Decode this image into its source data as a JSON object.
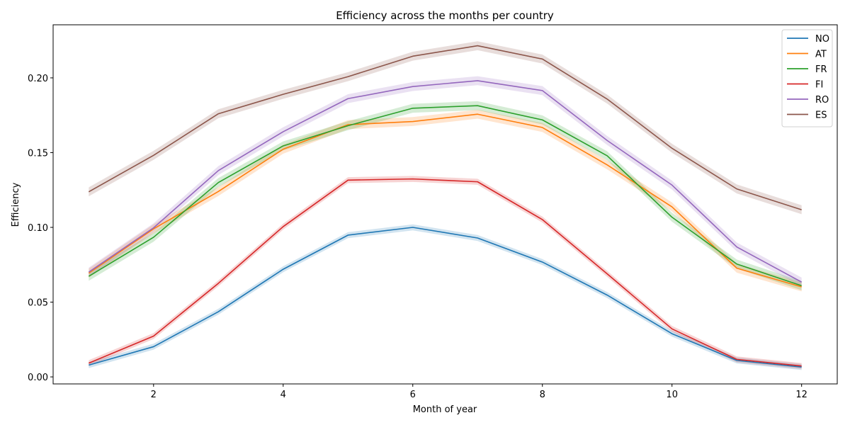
{
  "chart_data": {
    "type": "line",
    "title": "Efficiency across the months per country",
    "xlabel": "Month of year",
    "ylabel": "Efficiency",
    "x": [
      1,
      2,
      3,
      4,
      5,
      6,
      7,
      8,
      9,
      10,
      11,
      12
    ],
    "xlim": [
      0.45,
      12.55
    ],
    "ylim": [
      -0.0047,
      0.2355
    ],
    "xticks": [
      2,
      4,
      6,
      8,
      10,
      12
    ],
    "xtick_labels": [
      "2",
      "4",
      "6",
      "8",
      "10",
      "12"
    ],
    "yticks": [
      0.0,
      0.05,
      0.1,
      0.15,
      0.2
    ],
    "ytick_labels": [
      "0.00",
      "0.05",
      "0.10",
      "0.15",
      "0.20"
    ],
    "grid": false,
    "legend_position": "top-right",
    "confidence_band": true,
    "series": [
      {
        "name": "NO",
        "color": "#1f77b4",
        "ci": 0.002,
        "values": [
          0.0079,
          0.0202,
          0.0436,
          0.072,
          0.0948,
          0.1,
          0.0929,
          0.0768,
          0.0547,
          0.0289,
          0.011,
          0.0066
        ]
      },
      {
        "name": "AT",
        "color": "#ff7f0e",
        "ci": 0.003,
        "values": [
          0.0694,
          0.099,
          0.124,
          0.1523,
          0.1687,
          0.1708,
          0.1757,
          0.1668,
          0.1418,
          0.1137,
          0.0727,
          0.0602
        ]
      },
      {
        "name": "FR",
        "color": "#2ca02c",
        "ci": 0.003,
        "values": [
          0.0673,
          0.0934,
          0.13,
          0.1545,
          0.168,
          0.1797,
          0.1814,
          0.1719,
          0.1479,
          0.1068,
          0.0755,
          0.061
        ]
      },
      {
        "name": "FI",
        "color": "#d62728",
        "ci": 0.002,
        "values": [
          0.0092,
          0.0273,
          0.0626,
          0.1005,
          0.1316,
          0.1324,
          0.1305,
          0.1052,
          0.0689,
          0.0321,
          0.0117,
          0.0073
        ]
      },
      {
        "name": "RO",
        "color": "#9467bd",
        "ci": 0.003,
        "values": [
          0.0701,
          0.0997,
          0.138,
          0.164,
          0.1861,
          0.1942,
          0.1981,
          0.1915,
          0.1581,
          0.1283,
          0.0869,
          0.0634
        ]
      },
      {
        "name": "ES",
        "color": "#8c564b",
        "ci": 0.003,
        "values": [
          0.1238,
          0.1482,
          0.176,
          0.189,
          0.2008,
          0.2145,
          0.2215,
          0.2126,
          0.1858,
          0.1529,
          0.1257,
          0.1118
        ]
      }
    ]
  }
}
